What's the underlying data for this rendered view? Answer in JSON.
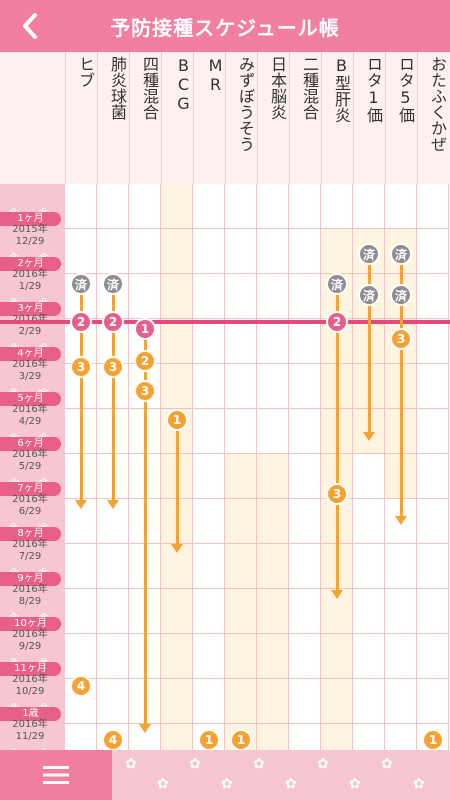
{
  "header": {
    "title": "予防接種スケジュール帳",
    "back_icon": "chevron-left-icon"
  },
  "columns": [
    "ヒブ",
    "肺炎球菌",
    "四種混合",
    "BCG",
    "MR",
    "みずぼうそう",
    "日本脳炎",
    "二種混合",
    "B型肝炎",
    "ロタ1価",
    "ロタ5価",
    "おたふくかぜ"
  ],
  "rows": [
    {
      "month": "1ヶ月",
      "date": "2015年\n12/29"
    },
    {
      "month": "2ヶ月",
      "date": "2016年\n1/29"
    },
    {
      "month": "3ヶ月",
      "date": "2016年\n2/29"
    },
    {
      "month": "4ヶ月",
      "date": "2016年\n3/29"
    },
    {
      "month": "5ヶ月",
      "date": "2016年\n4/29"
    },
    {
      "month": "6ヶ月",
      "date": "2016年\n5/29"
    },
    {
      "month": "7ヶ月",
      "date": "2016年\n6/29"
    },
    {
      "month": "8ヶ月",
      "date": "2016年\n7/29"
    },
    {
      "month": "9ヶ月",
      "date": "2016年\n8/29"
    },
    {
      "month": "10ヶ月",
      "date": "2016年\n9/29"
    },
    {
      "month": "11ヶ月",
      "date": "2016年\n10/29"
    },
    {
      "month": "1歳",
      "date": "2016年\n11/29"
    }
  ],
  "badges_done_label": "済",
  "footer": {
    "menu_icon": "hamburger-icon"
  },
  "colors": {
    "pink": "#f27ea2",
    "orange": "#f3a233",
    "gray": "#8e8e8e",
    "today": "#e34b7d"
  }
}
